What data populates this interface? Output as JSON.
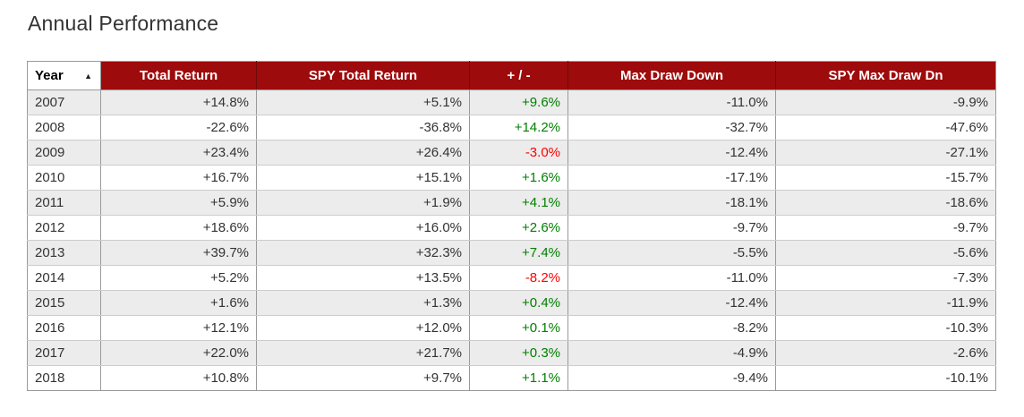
{
  "page_title": "Annual Performance",
  "sort_indicator": {
    "column": "Year",
    "direction": "ascending",
    "icon": "▲"
  },
  "column_keys": [
    "year",
    "total-return",
    "spy-total-return",
    "plus-minus",
    "max-draw-down",
    "spy-max-draw-dn"
  ],
  "colors": {
    "header_bg": "#9e0b0c",
    "header_text": "#ffffff",
    "positive": "#008000",
    "negative": "#ff0000",
    "row_stripe": "#ececec",
    "row_white": "#ffffff",
    "cell_text": "#333333",
    "border": "#999999",
    "row_divider": "#cccccc",
    "title_text": "#333333"
  },
  "chart_data": {
    "type": "table",
    "title": "Annual Performance",
    "columns": [
      "Year",
      "Total Return",
      "SPY Total Return",
      "+ / -",
      "Max Draw Down",
      "SPY Max Draw Dn"
    ],
    "diff_column_index": 3,
    "rows": [
      [
        "2007",
        "+14.8%",
        "+5.1%",
        "+9.6%",
        "-11.0%",
        "-9.9%"
      ],
      [
        "2008",
        "-22.6%",
        "-36.8%",
        "+14.2%",
        "-32.7%",
        "-47.6%"
      ],
      [
        "2009",
        "+23.4%",
        "+26.4%",
        "-3.0%",
        "-12.4%",
        "-27.1%"
      ],
      [
        "2010",
        "+16.7%",
        "+15.1%",
        "+1.6%",
        "-17.1%",
        "-15.7%"
      ],
      [
        "2011",
        "+5.9%",
        "+1.9%",
        "+4.1%",
        "-18.1%",
        "-18.6%"
      ],
      [
        "2012",
        "+18.6%",
        "+16.0%",
        "+2.6%",
        "-9.7%",
        "-9.7%"
      ],
      [
        "2013",
        "+39.7%",
        "+32.3%",
        "+7.4%",
        "-5.5%",
        "-5.6%"
      ],
      [
        "2014",
        "+5.2%",
        "+13.5%",
        "-8.2%",
        "-11.0%",
        "-7.3%"
      ],
      [
        "2015",
        "+1.6%",
        "+1.3%",
        "+0.4%",
        "-12.4%",
        "-11.9%"
      ],
      [
        "2016",
        "+12.1%",
        "+12.0%",
        "+0.1%",
        "-8.2%",
        "-10.3%"
      ],
      [
        "2017",
        "+22.0%",
        "+21.7%",
        "+0.3%",
        "-4.9%",
        "-2.6%"
      ],
      [
        "2018",
        "+10.8%",
        "+9.7%",
        "+1.1%",
        "-9.4%",
        "-10.1%"
      ]
    ]
  }
}
